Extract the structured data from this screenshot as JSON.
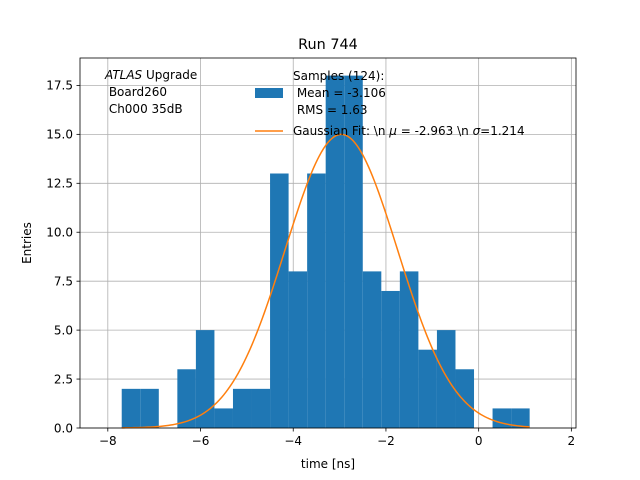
{
  "chart_data": {
    "type": "bar",
    "title": "Run 744",
    "xlabel": "time [ns]",
    "ylabel": "Entries",
    "xlim": [
      -8.6,
      2.1
    ],
    "ylim": [
      0,
      18.9
    ],
    "xticks": [
      -8,
      -6,
      -4,
      -2,
      0,
      2
    ],
    "xtick_labels": [
      "−8",
      "−6",
      "−4",
      "−2",
      "0",
      "2"
    ],
    "yticks": [
      0,
      2.5,
      5,
      7.5,
      10,
      12.5,
      15,
      17.5
    ],
    "ytick_labels": [
      "0.0",
      "2.5",
      "5.0",
      "7.5",
      "10.0",
      "12.5",
      "15.0",
      "17.5"
    ],
    "grid": true,
    "bar_color": "#1f77b4",
    "fit_color": "#ff7f0e",
    "histogram": {
      "bin_edges": [
        -7.7,
        -7.3,
        -6.9,
        -6.5,
        -6.1,
        -5.7,
        -5.3,
        -4.9,
        -4.5,
        -4.1,
        -3.7,
        -3.3,
        -2.9,
        -2.5,
        -2.1,
        -1.7,
        -1.3,
        -0.9,
        -0.5,
        -0.1,
        0.3,
        0.7,
        1.1
      ],
      "counts": [
        2,
        2,
        0,
        3,
        5,
        1,
        2,
        2,
        13,
        8,
        13,
        18,
        18,
        8,
        7,
        8,
        4,
        5,
        3,
        0,
        1,
        1
      ]
    },
    "gaussian_fit": {
      "amplitude": 15.0,
      "mu": -2.963,
      "sigma": 1.214,
      "x_range": [
        -7.7,
        1.1
      ]
    },
    "annotation": {
      "line1_italic": "ATLAS",
      "line1_rest": " Upgrade",
      "line2": " Board260",
      "line3": " Ch000 35dB"
    },
    "legend": {
      "placement": "top-right",
      "samples_line1": "Samples (124):",
      "samples_line2": " Mean = -3.106",
      "samples_line3": " RMS = 1.63",
      "fit_label_pre": "Gaussian Fit: \\n ",
      "fit_mu_symbol": "μ",
      "fit_mu_text": " = -2.963 \\n ",
      "fit_sigma_symbol": "σ",
      "fit_sigma_text": "=1.214"
    }
  }
}
